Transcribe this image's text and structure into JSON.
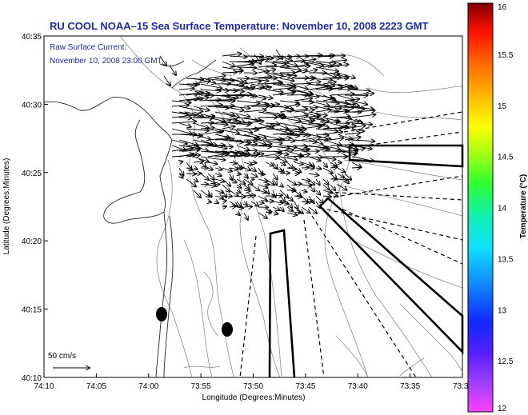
{
  "title": "RU COOL  NOAA–15  Sea Surface Temperature:  November 10, 2008 2223 GMT",
  "legend": {
    "line1": "Raw Surface Current:",
    "line2": "November 10, 2008 23:00 GMT"
  },
  "scale_label": "50 cm/s",
  "axes": {
    "xlabel": "Longitude (Degrees:Minutes)",
    "ylabel": "Latitude (Degrees:Minutes)",
    "x_ticks": [
      "74:10",
      "74:05",
      "74:00",
      "73:55",
      "73:50",
      "73:45",
      "73:40",
      "73:35",
      "73:3"
    ],
    "y_ticks": [
      "40:35",
      "40:30",
      "40:25",
      "40:20",
      "40:15",
      "40:10"
    ]
  },
  "colorbar": {
    "label": "Temperature (°C)",
    "min": 12,
    "max": 16,
    "ticks": [
      "12",
      "12.5",
      "13",
      "13.5",
      "14",
      "14.5",
      "15",
      "15.5",
      "16"
    ]
  },
  "colors": {
    "title": "#1e2aa0",
    "contour": "#8a8a8a",
    "coast": "#222222"
  }
}
